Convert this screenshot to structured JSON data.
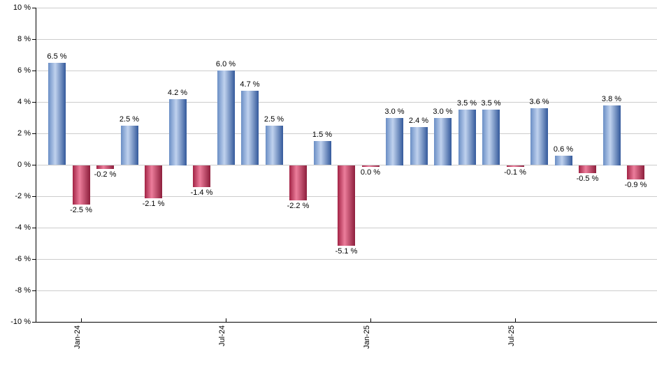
{
  "chart_data": {
    "type": "bar",
    "title": "",
    "unit": "%",
    "bars": [
      {
        "value": 6.5,
        "label": "6.5 %"
      },
      {
        "value": -2.5,
        "label": "-2.5 %"
      },
      {
        "value": -0.2,
        "label": "-0.2 %"
      },
      {
        "value": 2.5,
        "label": "2.5 %"
      },
      {
        "value": -2.1,
        "label": "-2.1 %"
      },
      {
        "value": 4.2,
        "label": "4.2 %"
      },
      {
        "value": -1.4,
        "label": "-1.4 %"
      },
      {
        "value": 6.0,
        "label": "6.0 %"
      },
      {
        "value": 4.7,
        "label": "4.7 %"
      },
      {
        "value": 2.5,
        "label": "2.5 %"
      },
      {
        "value": -2.2,
        "label": "-2.2 %"
      },
      {
        "value": 1.5,
        "label": "1.5 %"
      },
      {
        "value": -5.1,
        "label": "-5.1 %"
      },
      {
        "value": 0.0,
        "label": "0.0 %",
        "sign": "negative"
      },
      {
        "value": 3.0,
        "label": "3.0 %"
      },
      {
        "value": 2.4,
        "label": "2.4 %"
      },
      {
        "value": 3.0,
        "label": "3.0 %"
      },
      {
        "value": 3.5,
        "label": "3.5 %"
      },
      {
        "value": 3.5,
        "label": "3.5 %"
      },
      {
        "value": -0.1,
        "label": "-0.1 %"
      },
      {
        "value": 3.6,
        "label": "3.6 %"
      },
      {
        "value": 0.6,
        "label": "0.6 %"
      },
      {
        "value": -0.5,
        "label": "-0.5 %"
      },
      {
        "value": 3.8,
        "label": "3.8 %"
      },
      {
        "value": -0.9,
        "label": "-0.9 %"
      }
    ],
    "x_ticks": [
      {
        "label": "Jan-24",
        "bar_index": 1
      },
      {
        "label": "Jul-24",
        "bar_index": 7
      },
      {
        "label": "Jan-25",
        "bar_index": 13
      },
      {
        "label": "Jul-25",
        "bar_index": 19
      }
    ],
    "y_axis": {
      "min": -10,
      "max": 10,
      "tick_step": 2,
      "tick_labels": [
        "10 %",
        "8 %",
        "6 %",
        "4 %",
        "2 %",
        "0 %",
        "-2 %",
        "-4 %",
        "-6 %",
        "-8 %",
        "-10 %"
      ]
    },
    "layout_hints": {
      "grid": "horizontal",
      "legend": "none",
      "bar_label_position": "outside-end"
    },
    "colors": {
      "positive_gradient": [
        "#6a8ec5",
        "#c0d2ee",
        "#33599b"
      ],
      "negative_gradient": [
        "#a22345",
        "#ec7d9b",
        "#8d1e3c"
      ],
      "grid": "#cccccc",
      "axis": "#000000",
      "label_text": "#000000"
    }
  }
}
